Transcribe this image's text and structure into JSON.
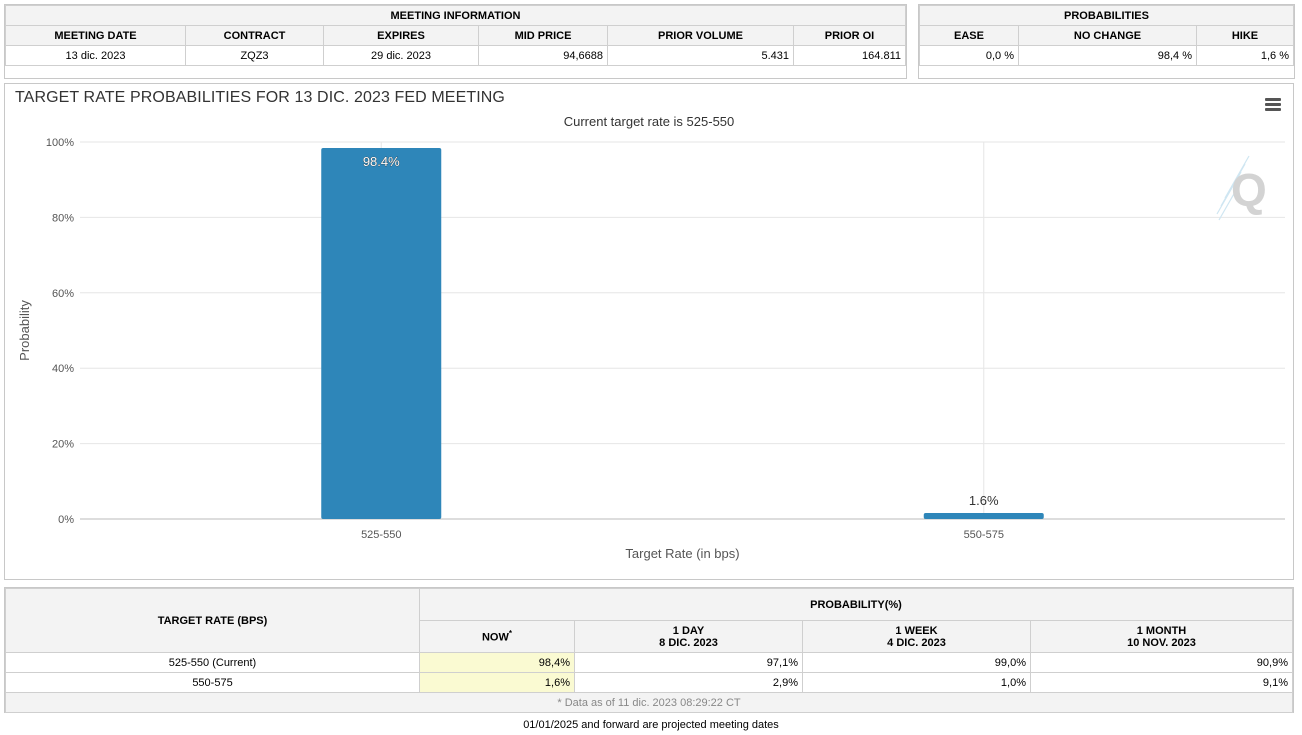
{
  "meeting_info": {
    "caption": "MEETING INFORMATION",
    "headers": [
      "MEETING DATE",
      "CONTRACT",
      "EXPIRES",
      "MID PRICE",
      "PRIOR VOLUME",
      "PRIOR OI"
    ],
    "row": [
      "13 dic. 2023",
      "ZQZ3",
      "29 dic. 2023",
      "94,6688",
      "5.431",
      "164.811"
    ]
  },
  "probabilities": {
    "caption": "PROBABILITIES",
    "headers": [
      "EASE",
      "NO CHANGE",
      "HIKE"
    ],
    "row": [
      "0,0 %",
      "98,4 %",
      "1,6 %"
    ]
  },
  "chart": {
    "title": "TARGET RATE PROBABILITIES FOR 13 DIC. 2023 FED MEETING",
    "subtitle": "Current target rate is 525-550"
  },
  "chart_data": {
    "type": "bar",
    "title": "TARGET RATE PROBABILITIES FOR 13 DIC. 2023 FED MEETING",
    "subtitle": "Current target rate is 525-550",
    "categories": [
      "525-550",
      "550-575"
    ],
    "values": [
      98.4,
      1.6
    ],
    "data_labels": [
      "98.4%",
      "1.6%"
    ],
    "xlabel": "Target Rate (in bps)",
    "ylabel": "Probability",
    "ylim": [
      0,
      100
    ],
    "yticks": [
      "0%",
      "20%",
      "40%",
      "60%",
      "80%",
      "100%"
    ],
    "color": "#2e86b9",
    "grid": true
  },
  "prob_table": {
    "target_header": "TARGET RATE (BPS)",
    "prob_header": "PROBABILITY(%)",
    "columns": [
      {
        "label": "NOW",
        "sup": "*",
        "date": ""
      },
      {
        "label": "1 DAY",
        "date": "8 DIC. 2023"
      },
      {
        "label": "1 WEEK",
        "date": "4 DIC. 2023"
      },
      {
        "label": "1 MONTH",
        "date": "10 NOV. 2023"
      }
    ],
    "rows": [
      {
        "rate": "525-550 (Current)",
        "now": "98,4%",
        "day": "97,1%",
        "week": "99,0%",
        "month": "90,9%"
      },
      {
        "rate": "550-575",
        "now": "1,6%",
        "day": "2,9%",
        "week": "1,0%",
        "month": "9,1%"
      }
    ],
    "footnote": "* Data as of 11 dic. 2023 08:29:22 CT"
  },
  "projected_note": "01/01/2025 and forward are projected meeting dates"
}
